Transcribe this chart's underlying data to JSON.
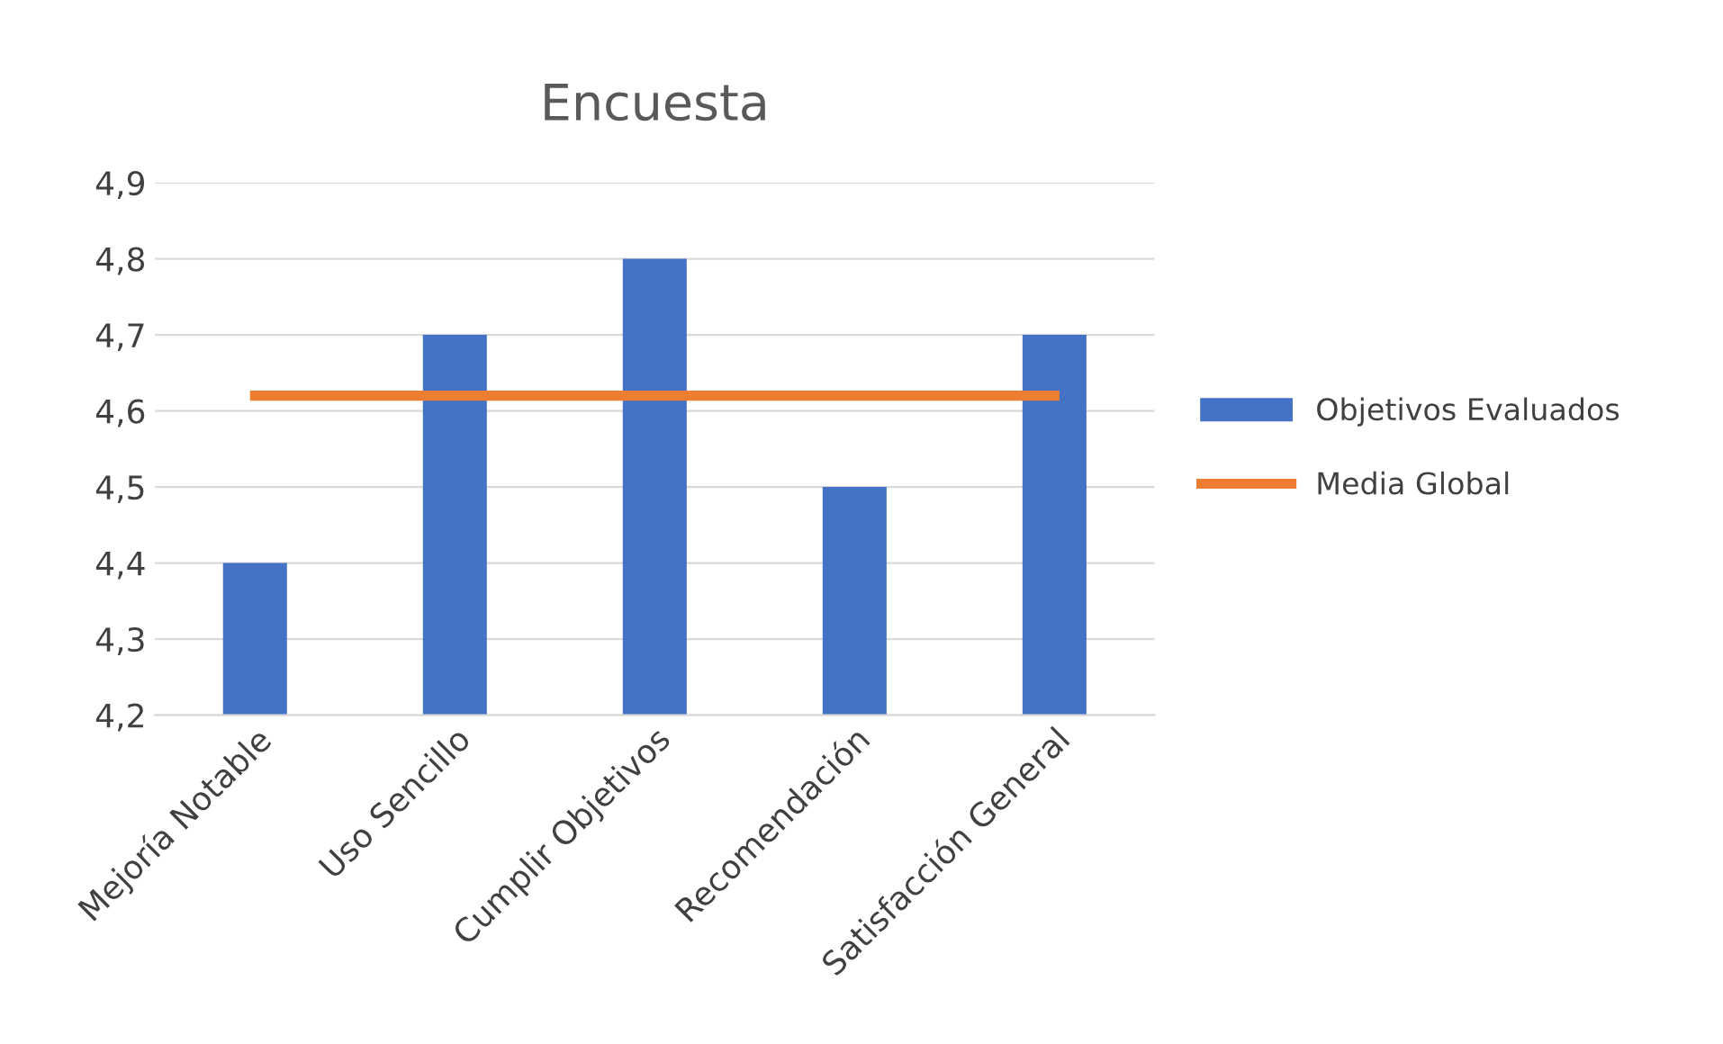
{
  "chart_data": {
    "type": "bar",
    "title": "Encuesta",
    "categories": [
      "Mejoría Notable",
      "Uso Sencillo",
      "Cumplir Objetivos",
      "Recomendación",
      "Satisfacción General"
    ],
    "series": [
      {
        "name": "Objetivos Evaluados",
        "color": "#4472c4",
        "values": [
          4.4,
          4.7,
          4.8,
          4.5,
          4.7
        ]
      },
      {
        "name": "Media Global",
        "type": "line",
        "color": "#ed7d31",
        "values": [
          4.62,
          4.62,
          4.62,
          4.62,
          4.62
        ]
      }
    ],
    "ylim": [
      4.2,
      4.9
    ],
    "yticks": [
      {
        "value": 4.2,
        "label": "4,2"
      },
      {
        "value": 4.3,
        "label": "4,3"
      },
      {
        "value": 4.4,
        "label": "4,4"
      },
      {
        "value": 4.5,
        "label": "4,5"
      },
      {
        "value": 4.6,
        "label": "4,6"
      },
      {
        "value": 4.7,
        "label": "4,7"
      },
      {
        "value": 4.8,
        "label": "4,8"
      },
      {
        "value": 4.9,
        "label": "4,9"
      }
    ],
    "grid": "y",
    "legend": "right",
    "marker": "none"
  }
}
